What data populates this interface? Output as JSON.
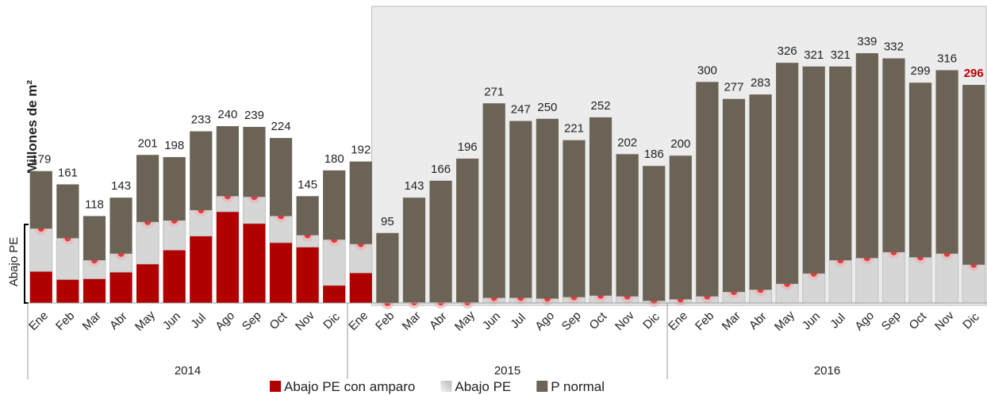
{
  "chart_data": {
    "type": "stacked-bar",
    "ylabel": "Millones de m²",
    "annotation": "Abajo PE",
    "categories": [
      "Ene",
      "Feb",
      "Mar",
      "Abr",
      "May",
      "Jun",
      "Jul",
      "Ago",
      "Sep",
      "Oct",
      "Nov",
      "Dic",
      "Ene",
      "Feb",
      "Mar",
      "Abr",
      "May",
      "Jun",
      "Jul",
      "Ago",
      "Sep",
      "Oct",
      "Nov",
      "Dic",
      "Ene",
      "Feb",
      "Mar",
      "Abr",
      "May",
      "Jun",
      "Jul",
      "Ago",
      "Sep",
      "Oct",
      "Nov",
      "Dic"
    ],
    "years": [
      "2014",
      "2015",
      "2016"
    ],
    "ylim": [
      0,
      380
    ],
    "series": [
      {
        "name": "Abajo PE con amparo",
        "color": "#b00000",
        "values": [
          43,
          32,
          33,
          42,
          53,
          72,
          91,
          124,
          108,
          82,
          76,
          24,
          41,
          0,
          0,
          0,
          0,
          0,
          0,
          0,
          0,
          0,
          0,
          0,
          0,
          0,
          0,
          0,
          0,
          0,
          0,
          0,
          0,
          0,
          0,
          0
        ]
      },
      {
        "name": "Abajo PE",
        "color": "#d6d6d6",
        "values": [
          58,
          56,
          25,
          25,
          57,
          40,
          35,
          21,
          36,
          36,
          16,
          62,
          39,
          0,
          1,
          1,
          1,
          7,
          7,
          6,
          8,
          10,
          9,
          3,
          5,
          9,
          15,
          18,
          26,
          40,
          58,
          61,
          69,
          62,
          67,
          52
        ]
      },
      {
        "name": "P normal",
        "color": "#6b6456",
        "values": [
          78,
          73,
          60,
          76,
          91,
          86,
          107,
          95,
          95,
          106,
          53,
          94,
          112,
          95,
          142,
          165,
          195,
          264,
          240,
          244,
          213,
          242,
          193,
          183,
          195,
          291,
          262,
          265,
          300,
          281,
          263,
          278,
          263,
          237,
          249,
          244
        ]
      }
    ],
    "totals": [
      179,
      161,
      118,
      143,
      201,
      198,
      233,
      240,
      239,
      224,
      145,
      180,
      192,
      95,
      143,
      166,
      196,
      271,
      247,
      250,
      221,
      252,
      202,
      186,
      200,
      300,
      277,
      283,
      326,
      321,
      321,
      339,
      332,
      299,
      316,
      296
    ],
    "highlight": {
      "index": 35,
      "color": "#c00000"
    },
    "shade_color": "#ececec"
  }
}
